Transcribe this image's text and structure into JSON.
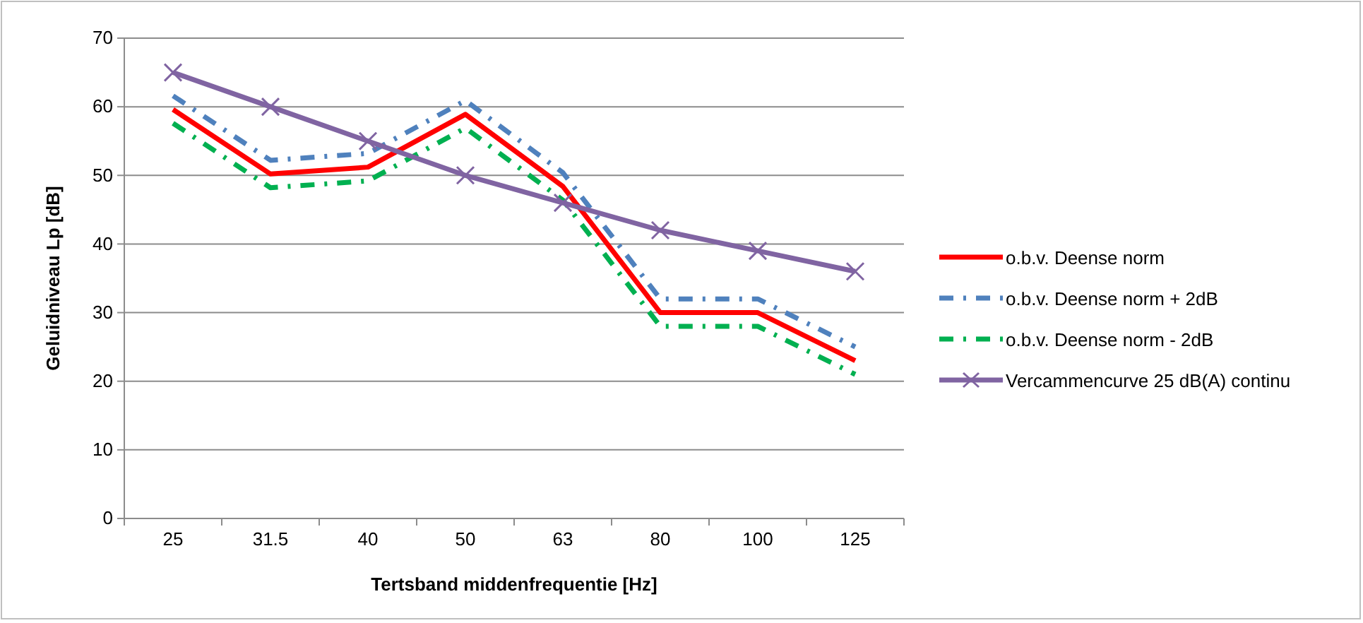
{
  "chart_data": {
    "type": "line",
    "xlabel": "Tertsband middenfrequentie [Hz]",
    "ylabel": "Geluidniveau Lp [dB]",
    "categories": [
      "25",
      "31.5",
      "40",
      "50",
      "63",
      "80",
      "100",
      "125"
    ],
    "series": [
      {
        "name": "o.b.v. Deense norm",
        "color": "#ff0000",
        "line_style": "solid",
        "marker": "none",
        "values": [
          59.6,
          50.2,
          51.2,
          58.9,
          48.4,
          30,
          30,
          23
        ]
      },
      {
        "name": "o.b.v. Deense norm + 2dB",
        "color": "#4f81bd",
        "line_style": "dashdot",
        "marker": "none",
        "values": [
          61.6,
          52.2,
          53.2,
          60.9,
          50.4,
          32,
          32,
          25
        ]
      },
      {
        "name": "o.b.v. Deense norm - 2dB",
        "color": "#00b050",
        "line_style": "dashdot",
        "marker": "none",
        "values": [
          57.6,
          48.2,
          49.2,
          56.9,
          46.4,
          28,
          28,
          21
        ]
      },
      {
        "name": "Vercammencurve 25 dB(A) continu",
        "color": "#8064a2",
        "line_style": "solid",
        "marker": "cross",
        "values": [
          65,
          60,
          55,
          50,
          46,
          42,
          39,
          36
        ]
      }
    ],
    "ylim": [
      0,
      70
    ],
    "yticks": [
      0,
      10,
      20,
      30,
      40,
      50,
      60,
      70
    ],
    "grid": "y",
    "legend": "right"
  }
}
